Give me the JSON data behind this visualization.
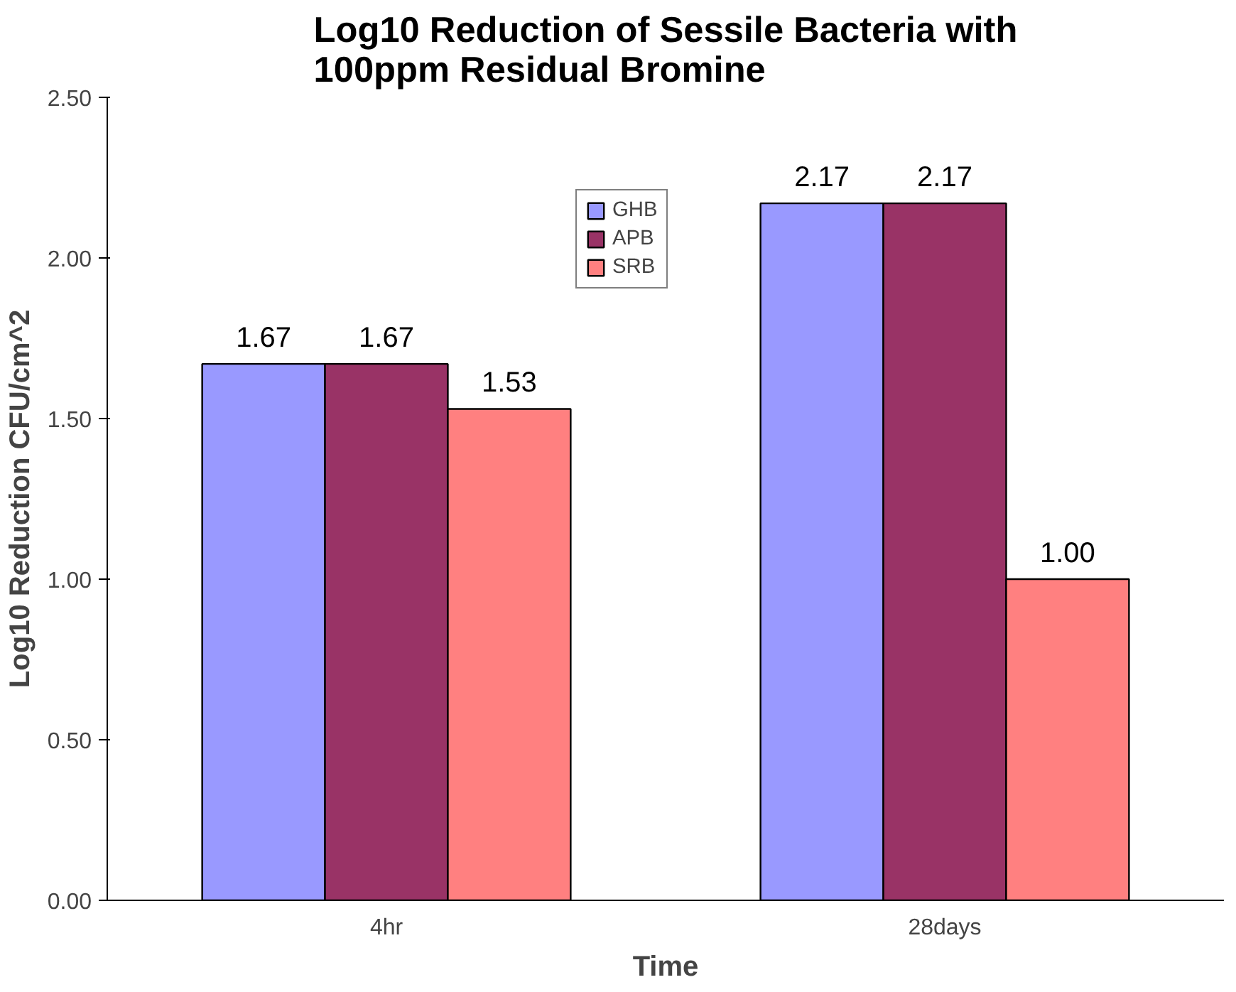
{
  "chart_data": {
    "type": "bar",
    "title": "Log10 Reduction of Sessile Bacteria with\n100ppm Residual Bromine",
    "xlabel": "Time",
    "ylabel": "Log10 Reduction CFU/cm^2",
    "categories": [
      "4hr",
      "28days"
    ],
    "series": [
      {
        "name": "GHB",
        "color": "#9999ff",
        "values": [
          1.67,
          2.17
        ],
        "value_labels": [
          "1.67",
          "2.17"
        ]
      },
      {
        "name": "APB",
        "color": "#993366",
        "values": [
          1.67,
          2.17
        ],
        "value_labels": [
          "1.67",
          "2.17"
        ]
      },
      {
        "name": "SRB",
        "color": "#ff8080",
        "values": [
          1.53,
          1.0
        ],
        "value_labels": [
          "1.53",
          "1.00"
        ]
      }
    ],
    "ylim": [
      0,
      2.5
    ],
    "yticks": [
      {
        "value": 0,
        "label": "0.00"
      },
      {
        "value": 0.5,
        "label": "0.50"
      },
      {
        "value": 1,
        "label": "1.00"
      },
      {
        "value": 1.5,
        "label": "1.50"
      },
      {
        "value": 2,
        "label": "2.00"
      },
      {
        "value": 2.5,
        "label": "2.50"
      }
    ],
    "grid": false,
    "legend": "top"
  }
}
